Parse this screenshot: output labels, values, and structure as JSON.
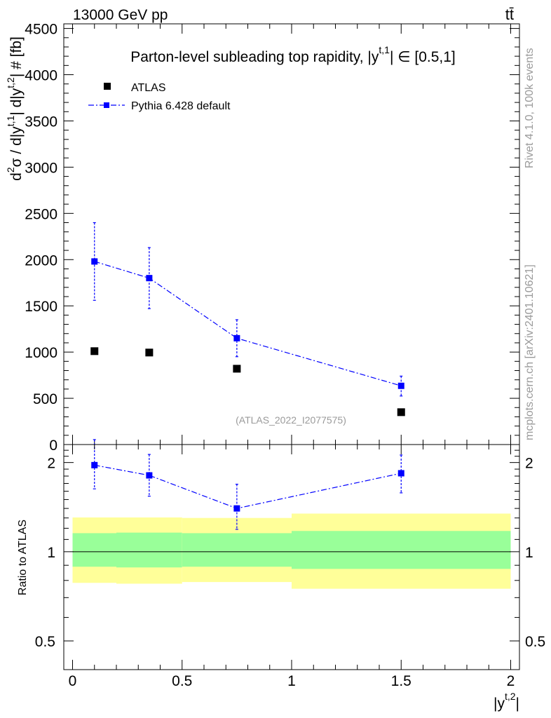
{
  "header": {
    "energy_label": "13000 GeV pp",
    "process_label": "tt̄"
  },
  "side_labels": {
    "rivet": "Rivet 4.1.0,  100k events",
    "mcplots": "mcplots.cern.ch [arXiv:2401.10621]"
  },
  "colors": {
    "data": "#000000",
    "mc": "#0000ff",
    "band_outer": "#ffff99",
    "band_inner": "#99ff99",
    "watermark": "#9a9a9a"
  },
  "chart_data": [
    {
      "type": "scatter",
      "title": "Parton-level subleading top rapidity, |y",
      "title_sup": "t,1",
      "title_suffix": "| ∈ [0.5,1]",
      "ylabel_parts": [
        "d",
        "2",
        "σ / d|y",
        "t,1",
        "| d|y",
        "t,2",
        "| # [fb]"
      ],
      "ylim": [
        0,
        4550
      ],
      "yticks": [
        0,
        500,
        1000,
        1500,
        2000,
        2500,
        3000,
        3500,
        4000,
        4500
      ],
      "ytick_labels": [
        "0",
        "500",
        "1000",
        "1500",
        "2000",
        "2500",
        "3000",
        "3500",
        "4000",
        "4500"
      ],
      "watermark": "(ATLAS_2022_I2077575)",
      "legend": [
        {
          "name": "ATLAS"
        },
        {
          "name": "Pythia 6.428 default"
        }
      ],
      "series": [
        {
          "name": "ATLAS",
          "x": [
            0.1,
            0.35,
            0.75,
            1.5
          ],
          "y": [
            1010,
            995,
            820,
            350
          ],
          "style": "marker"
        },
        {
          "name": "Pythia 6.428 default",
          "x": [
            0.1,
            0.35,
            0.75,
            1.5
          ],
          "y": [
            1980,
            1800,
            1150,
            635
          ],
          "yerr_low": [
            420,
            330,
            200,
            110
          ],
          "yerr_high": [
            420,
            330,
            200,
            105
          ],
          "style": "line-marker"
        }
      ]
    },
    {
      "type": "scatter",
      "ylabel": "Ratio to ATLAS",
      "xlabel_parts": [
        "|y",
        "t,2",
        "|"
      ],
      "ylim": [
        0.4,
        2.3
      ],
      "yscale": "log",
      "xlim": [
        -0.04,
        2.04
      ],
      "xticks": [
        0,
        0.5,
        1,
        1.5,
        2
      ],
      "xtick_labels": [
        "0",
        "0.5",
        "1",
        "1.5",
        "2"
      ],
      "yticks": [
        0.5,
        1,
        2
      ],
      "ytick_labels": [
        "0.5",
        "1",
        "2"
      ],
      "bands": [
        {
          "x_low": 0.0,
          "x_high": 0.2,
          "outer_low": 0.785,
          "outer_high": 1.305,
          "inner_low": 0.89,
          "inner_high": 1.155
        },
        {
          "x_low": 0.2,
          "x_high": 0.5,
          "outer_low": 0.78,
          "outer_high": 1.305,
          "inner_low": 0.885,
          "inner_high": 1.16
        },
        {
          "x_low": 0.5,
          "x_high": 1.0,
          "outer_low": 0.79,
          "outer_high": 1.3,
          "inner_low": 0.89,
          "inner_high": 1.155
        },
        {
          "x_low": 1.0,
          "x_high": 2.0,
          "outer_low": 0.75,
          "outer_high": 1.345,
          "inner_low": 0.875,
          "inner_high": 1.175
        }
      ],
      "series": [
        {
          "name": "Pythia 6.428 default",
          "x": [
            0.1,
            0.35,
            0.75,
            1.5
          ],
          "y": [
            1.96,
            1.81,
            1.4,
            1.84
          ],
          "yerr_low": [
            0.33,
            0.27,
            0.21,
            0.26
          ],
          "yerr_high": [
            0.43,
            0.32,
            0.29,
            0.28
          ]
        }
      ]
    }
  ]
}
